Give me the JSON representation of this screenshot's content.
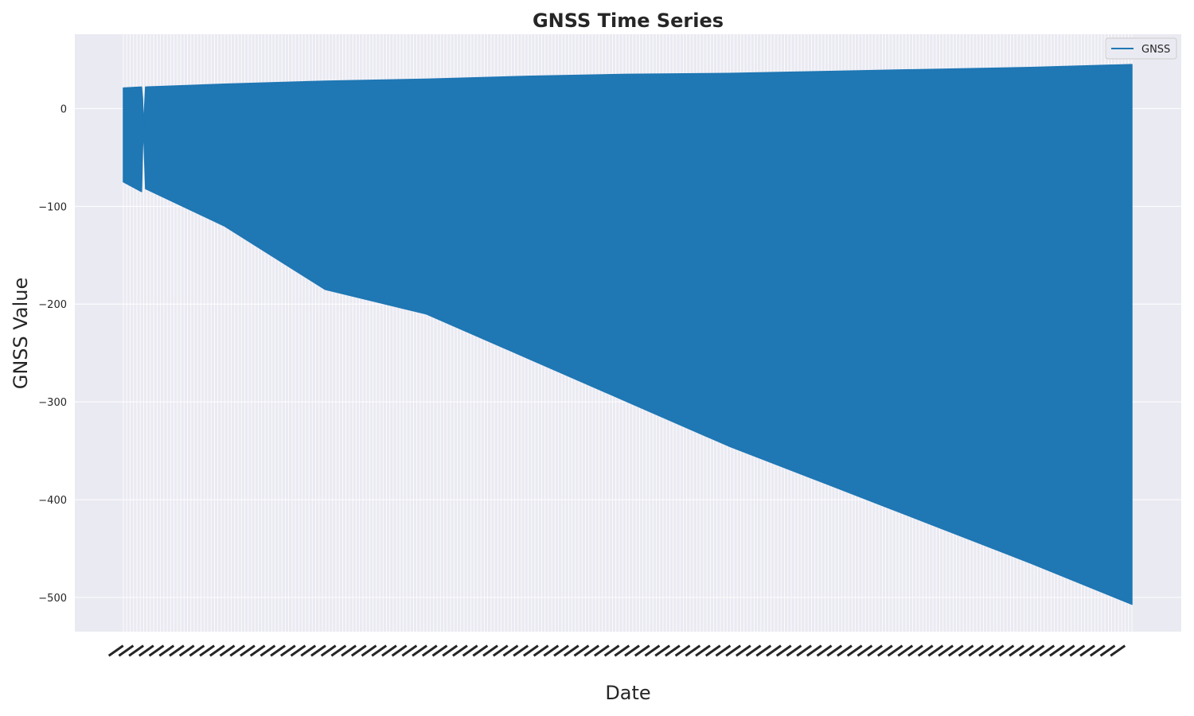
{
  "chart_data": {
    "type": "area",
    "title": "GNSS Time Series",
    "xlabel": "Date",
    "ylabel": "GNSS Value",
    "ylim": [
      -535,
      76
    ],
    "yticks": [
      0,
      -100,
      -200,
      -300,
      -400,
      -500
    ],
    "ytick_labels": [
      "0",
      "−100",
      "−200",
      "−300",
      "−400",
      "−500"
    ],
    "grid": true,
    "legend": {
      "position": "top-right",
      "entries": [
        "GNSS"
      ]
    },
    "series": [
      {
        "name": "GNSS",
        "color": "#1f77b4",
        "x": [
          0,
          0.018,
          0.019,
          0.02,
          0.022,
          0.1,
          0.2,
          0.3,
          0.4,
          0.5,
          0.6,
          0.7,
          0.8,
          0.9,
          1.0
        ],
        "upper": [
          21,
          22,
          10,
          -20,
          22,
          25,
          28,
          30,
          33,
          35,
          36,
          38,
          40,
          42,
          45
        ],
        "lower": [
          -75,
          -85,
          -40,
          -20,
          -82,
          -120,
          -185,
          -210,
          -255,
          -300,
          -345,
          -385,
          -425,
          -465,
          -507
        ]
      }
    ],
    "x_tick_count": 300
  },
  "colors": {
    "plot_background": "#eaeaf2",
    "grid": "#ffffff",
    "series": "#1f77b4",
    "text": "#262626"
  }
}
